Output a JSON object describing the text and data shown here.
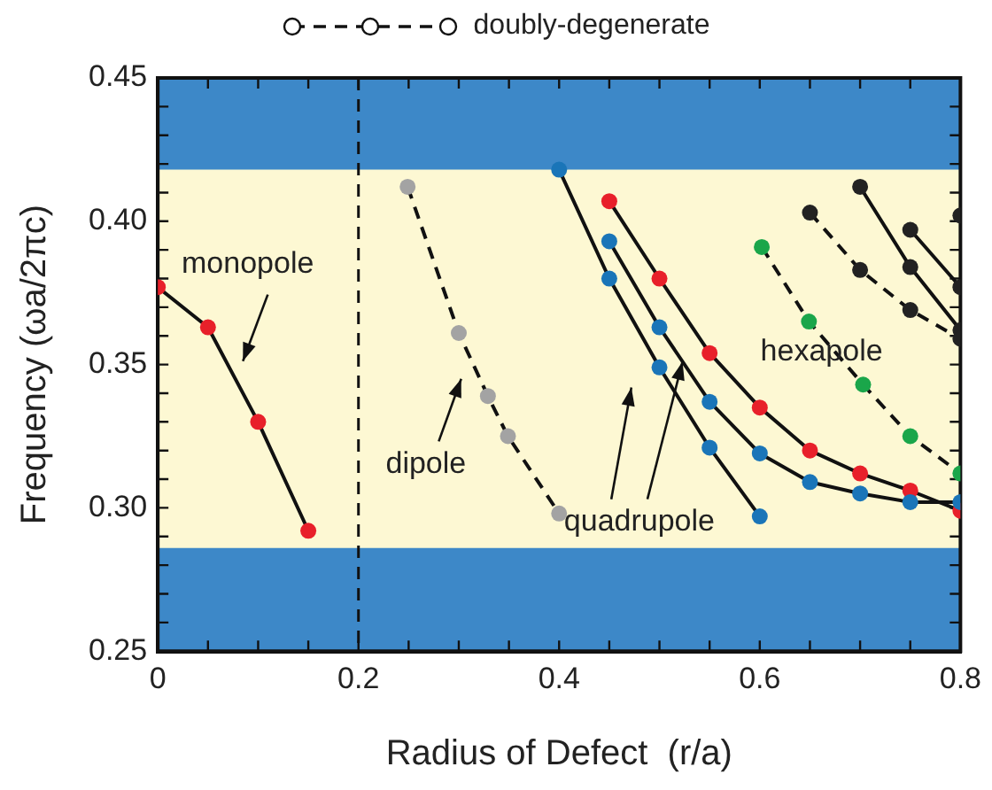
{
  "chart_data": {
    "type": "line",
    "xlabel": "Radius of Defect  (r/a)",
    "ylabel": "Frequency (ωa/2πc)",
    "legend_title": "doubly-degenerate",
    "marker": "circle",
    "xlim": [
      0,
      0.8
    ],
    "xticks": [
      0,
      {
        "value": 0.05,
        "label": null
      },
      {
        "value": 0.1,
        "label": null
      },
      {
        "value": 0.15,
        "label": null
      },
      0.2,
      {
        "value": 0.25,
        "label": null
      },
      {
        "value": 0.3,
        "label": null
      },
      {
        "value": 0.35,
        "label": null
      },
      0.4,
      {
        "value": 0.45,
        "label": null
      },
      {
        "value": 0.5,
        "label": null
      },
      {
        "value": 0.55,
        "label": null
      },
      0.6,
      {
        "value": 0.65,
        "label": null
      },
      {
        "value": 0.7,
        "label": null
      },
      {
        "value": 0.75,
        "label": null
      },
      0.8
    ],
    "ylim": [
      0.25,
      0.45
    ],
    "yticks": [
      0.25,
      {
        "value": 0.26,
        "label": null
      },
      {
        "value": 0.27,
        "label": null
      },
      {
        "value": 0.28,
        "label": null
      },
      {
        "value": 0.29,
        "label": null
      },
      {
        "value": 0.3,
        "label": "0.30"
      },
      {
        "value": 0.31,
        "label": null
      },
      {
        "value": 0.32,
        "label": null
      },
      {
        "value": 0.33,
        "label": null
      },
      {
        "value": 0.34,
        "label": null
      },
      0.35,
      {
        "value": 0.36,
        "label": null
      },
      {
        "value": 0.37,
        "label": null
      },
      {
        "value": 0.38,
        "label": null
      },
      {
        "value": 0.39,
        "label": null
      },
      {
        "value": 0.4,
        "label": "0.40"
      },
      {
        "value": 0.41,
        "label": null
      },
      {
        "value": 0.42,
        "label": null
      },
      {
        "value": 0.43,
        "label": null
      },
      {
        "value": 0.44,
        "label": null
      },
      0.45
    ],
    "bands": [
      {
        "axis": "y",
        "from": 0.418,
        "to": 0.45,
        "color": "#3d88c8"
      },
      {
        "axis": "y",
        "from": 0.25,
        "to": 0.286,
        "color": "#3d88c8"
      }
    ],
    "ref_lines": [
      {
        "axis": "x",
        "value": 0.2,
        "line_style": "dashed"
      }
    ],
    "series": [
      {
        "color": "#e8202a",
        "line_style": "solid",
        "x": [
          0,
          0.05,
          0.1,
          0.15
        ],
        "values": [
          0.377,
          0.363,
          0.33,
          0.292
        ]
      },
      {
        "color": "#a3a3a3",
        "line_style": "dashed",
        "x": [
          0.249,
          0.3,
          0.329,
          0.349,
          0.4
        ],
        "values": [
          0.412,
          0.361,
          0.339,
          0.325,
          0.298
        ]
      },
      {
        "color": "#1a75b8",
        "line_style": "solid",
        "x": [
          0.4,
          0.45,
          0.5,
          0.55,
          0.6
        ],
        "values": [
          0.418,
          0.38,
          0.349,
          0.321,
          0.297
        ]
      },
      {
        "color": "#1a75b8",
        "line_style": "solid",
        "x": [
          0.45,
          0.5,
          0.55,
          0.6,
          0.65,
          0.7,
          0.75,
          0.8
        ],
        "values": [
          0.393,
          0.363,
          0.337,
          0.319,
          0.309,
          0.305,
          0.302,
          0.302
        ]
      },
      {
        "color": "#e8202a",
        "line_style": "solid",
        "x": [
          0.45,
          0.5,
          0.55,
          0.6,
          0.65,
          0.7,
          0.75,
          0.8
        ],
        "values": [
          0.407,
          0.38,
          0.354,
          0.335,
          0.32,
          0.312,
          0.306,
          0.299
        ]
      },
      {
        "color": "#1aa64a",
        "line_style": "dashed",
        "x": [
          0.602,
          0.649,
          0.703,
          0.75,
          0.8
        ],
        "values": [
          0.391,
          0.365,
          0.343,
          0.325,
          0.312
        ]
      },
      {
        "color": "#222222",
        "line_style": "dashed",
        "x": [
          0.65,
          0.7,
          0.75,
          0.8
        ],
        "values": [
          0.403,
          0.383,
          0.369,
          0.359
        ]
      },
      {
        "color": "#222222",
        "line_style": "solid",
        "x": [
          0.7,
          0.75,
          0.8
        ],
        "values": [
          0.412,
          0.384,
          0.362
        ]
      },
      {
        "color": "#222222",
        "line_style": "solid",
        "x": [
          0.75,
          0.8
        ],
        "values": [
          0.397,
          0.377
        ]
      },
      {
        "color": "#222222",
        "line_style": "solid",
        "x": [
          0.8
        ],
        "values": [
          0.402
        ]
      }
    ],
    "annotations": [
      "monopole",
      "dipole",
      {
        "text": "quadrupole",
        "x": 0.523,
        "y": 0.351
      },
      "hexapole"
    ]
  }
}
